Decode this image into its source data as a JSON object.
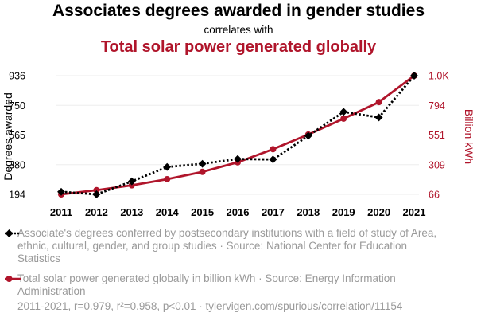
{
  "header": {
    "title": "Associates degrees awarded in gender studies",
    "subtitle": "correlates with",
    "title2": "Total solar power generated globally"
  },
  "colors": {
    "series1": "#000000",
    "series2": "#b0152b",
    "legend_text": "#9a9a9a"
  },
  "chart_data": {
    "type": "line",
    "x": [
      2011,
      2012,
      2013,
      2014,
      2015,
      2016,
      2017,
      2018,
      2019,
      2020,
      2021
    ],
    "ylabel_left": "Degrees awarded",
    "ylabel_right": "Billion kWh",
    "left_ticks": [
      "194",
      "380",
      "565",
      "750",
      "936"
    ],
    "right_ticks": [
      "66",
      "309",
      "551",
      "794",
      "1.0K"
    ],
    "ylim_left": [
      194,
      936
    ],
    "ylim_right": [
      66,
      1036
    ],
    "grid": true,
    "series": [
      {
        "name": "Associate's degrees conferred by postsecondary institutions with a field of study of Area, ethnic, cultural, gender, and group studies · Source: National Center for Education Statistics",
        "axis": "left",
        "style": "dotted",
        "marker": "diamond",
        "values": [
          210,
          194,
          275,
          365,
          385,
          415,
          412,
          560,
          710,
          675,
          936
        ]
      },
      {
        "name": "Total solar power generated globally in billion kWh · Source: Energy Information Administration",
        "axis": "right",
        "style": "solid",
        "marker": "circle",
        "values": [
          66,
          100,
          140,
          190,
          250,
          328,
          435,
          555,
          685,
          820,
          1036
        ]
      }
    ]
  },
  "legend": {
    "series1": "Associate's degrees conferred by postsecondary institutions with a field of study of Area, ethnic, cultural, gender, and group studies · Source: National Center for Education Statistics",
    "series2": "Total solar power generated globally in billion kWh · Source: Energy Information Administration"
  },
  "footer": "2011-2021, r=0.979, r²=0.958, p<0.01 · tylervigen.com/spurious/correlation/11154"
}
